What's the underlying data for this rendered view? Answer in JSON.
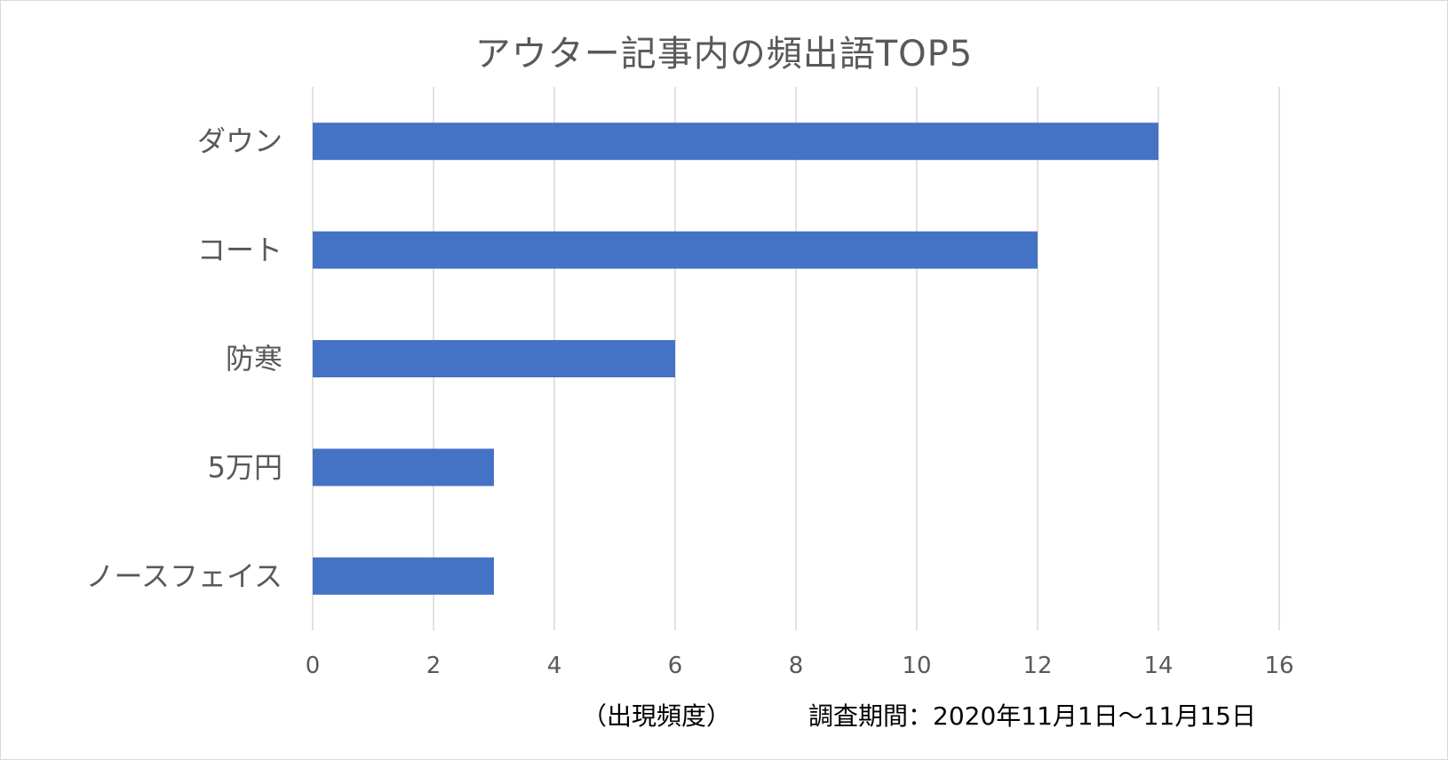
{
  "chart_data": {
    "type": "bar",
    "orientation": "horizontal",
    "title": "アウター記事内の頻出語TOP5",
    "categories": [
      "ダウン",
      "コート",
      "防寒",
      "5万円",
      "ノースフェイス"
    ],
    "values": [
      14,
      12,
      6,
      3,
      3
    ],
    "xlim": [
      0,
      16
    ],
    "xticks": [
      "0",
      "2",
      "4",
      "6",
      "8",
      "10",
      "12",
      "14",
      "16"
    ],
    "xlabel": "（出現頻度）",
    "note": "調査期間：2020年11月1日～11月15日",
    "grid": true,
    "bar_color": "#4472C4",
    "grid_color": "#d9d9d9"
  }
}
